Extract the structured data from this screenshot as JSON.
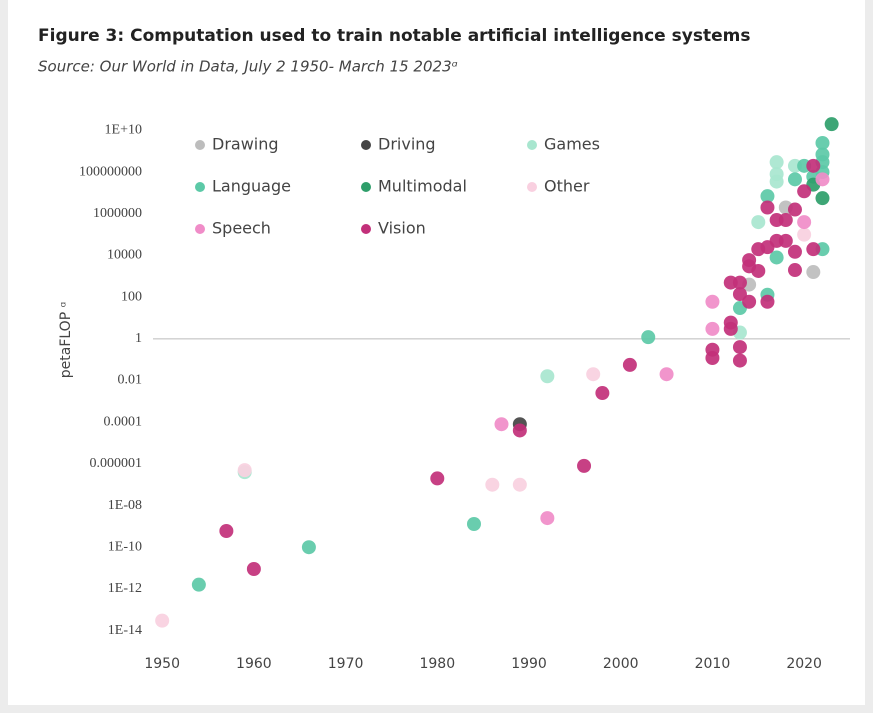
{
  "chart_data": {
    "type": "scatter",
    "title": "Figure 3:  Computation used to train notable artificial intelligence systems",
    "subtitle": "Source: Our World in Data, July 2 1950- March 15 2023ᵅ",
    "y_label": "petaFLOP ᵅ",
    "log_y": true,
    "hline": 1,
    "xlim": [
      1949,
      2025
    ],
    "xticks": [
      1950,
      1960,
      1970,
      1980,
      1990,
      2000,
      2010,
      2020
    ],
    "ylim": [
      3.16e-15,
      31600000000.0
    ],
    "yticks": [
      {
        "value": 10000000000.0,
        "label": "1E+10"
      },
      100000000,
      1000000,
      10000,
      100,
      1,
      0.01,
      0.0001,
      1e-06,
      {
        "value": 1e-08,
        "label": "1E-08"
      },
      {
        "value": 1e-10,
        "label": "1E-10"
      },
      {
        "value": 1e-12,
        "label": "1E-12"
      },
      {
        "value": 1e-14,
        "label": "1E-14"
      }
    ],
    "series": [
      {
        "name": "Drawing",
        "color": "#bdbdbd",
        "x": [
          2014,
          2018,
          2021
        ],
        "values": [
          400,
          2000000,
          1600
        ]
      },
      {
        "name": "Driving",
        "color": "#444444",
        "x": [
          1989
        ],
        "values": [
          8e-05
        ]
      },
      {
        "name": "Games",
        "color": "#a8e6cf",
        "x": [
          1959,
          1992,
          2013,
          2015,
          2017,
          2017,
          2017,
          2019
        ],
        "values": [
          4e-07,
          0.016,
          2,
          400000,
          300000000,
          80000000,
          35000000,
          200000000
        ]
      },
      {
        "name": "Language",
        "color": "#5cc9a7",
        "x": [
          1954,
          1966,
          1984,
          2003,
          2013,
          2016,
          2016,
          2017,
          2019,
          2020,
          2021,
          2022,
          2022,
          2022,
          2022,
          2022
        ],
        "values": [
          1.6e-12,
          1e-10,
          1.3e-09,
          1.2,
          30,
          130,
          7000000,
          8000,
          45000000,
          200000000,
          60000000,
          2500000000,
          20000,
          700000000,
          300000000,
          100000000
        ]
      },
      {
        "name": "Multimodal",
        "color": "#2e9e6a",
        "x": [
          2021,
          2022,
          2023
        ],
        "values": [
          25000000,
          5600000,
          20000000000
        ]
      },
      {
        "name": "Other",
        "color": "#f9d0e0",
        "x": [
          1950,
          1959,
          1986,
          1989,
          1997,
          2020
        ],
        "values": [
          3e-14,
          5e-07,
          1e-07,
          1e-07,
          0.02,
          100000
        ]
      },
      {
        "name": "Speech",
        "color": "#f08cc8",
        "x": [
          1987,
          1992,
          2005,
          2010,
          2010,
          2020,
          2022
        ],
        "values": [
          8e-05,
          2.5e-09,
          0.02,
          60,
          3,
          400000,
          45000000
        ]
      },
      {
        "name": "Vision",
        "color": "#c2307a",
        "x": [
          1957,
          1960,
          1980,
          1989,
          1996,
          1998,
          2001,
          2010,
          2010,
          2012,
          2012,
          2012,
          2013,
          2013,
          2013,
          2013,
          2014,
          2014,
          2014,
          2015,
          2015,
          2016,
          2016,
          2016,
          2017,
          2017,
          2018,
          2018,
          2019,
          2019,
          2019,
          2020,
          2021,
          2021
        ],
        "values": [
          6e-10,
          9e-12,
          2e-07,
          4e-05,
          8e-07,
          0.0025,
          0.056,
          0.3,
          0.12,
          500,
          6,
          3,
          500,
          140,
          0.4,
          0.09,
          60,
          6000,
          3000,
          1800,
          20000,
          25000,
          2000000,
          60,
          500000,
          50000,
          500000,
          50000,
          1600000,
          2000,
          15000,
          12000000,
          200000000,
          20000
        ]
      }
    ],
    "legend": "top-left"
  }
}
